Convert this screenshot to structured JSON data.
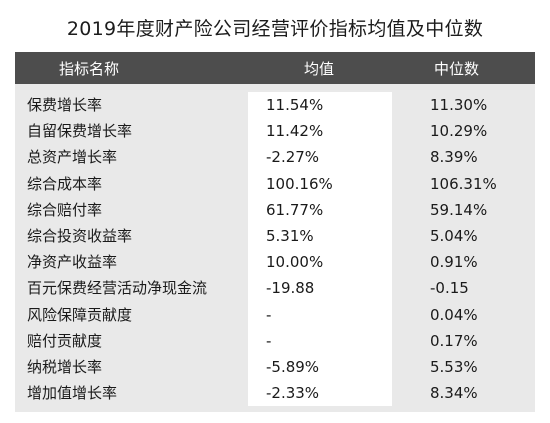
{
  "title": "2019年度财产险公司经营评价指标均值及中位数",
  "table": {
    "headers": {
      "name": "指标名称",
      "mean": "均值",
      "median": "中位数"
    },
    "rows": [
      {
        "name": "保费增长率",
        "mean": "11.54%",
        "median": "11.30%"
      },
      {
        "name": "自留保费增长率",
        "mean": "11.42%",
        "median": "10.29%"
      },
      {
        "name": "总资产增长率",
        "mean": "-2.27%",
        "median": "8.39%"
      },
      {
        "name": "综合成本率",
        "mean": "100.16%",
        "median": "106.31%"
      },
      {
        "name": "综合赔付率",
        "mean": "61.77%",
        "median": "59.14%"
      },
      {
        "name": "综合投资收益率",
        "mean": "5.31%",
        "median": "5.04%"
      },
      {
        "name": "净资产收益率",
        "mean": "10.00%",
        "median": "0.91%"
      },
      {
        "name": "百元保费经营活动净现金流",
        "mean": "-19.88",
        "median": "-0.15"
      },
      {
        "name": "风险保障贡献度",
        "mean": "-",
        "median": "0.04%"
      },
      {
        "name": "赔付贡献度",
        "mean": "-",
        "median": "0.17%"
      },
      {
        "name": "纳税增长率",
        "mean": "-5.89%",
        "median": "5.53%"
      },
      {
        "name": "增加值增长率",
        "mean": "-2.33%",
        "median": "8.34%"
      }
    ]
  }
}
